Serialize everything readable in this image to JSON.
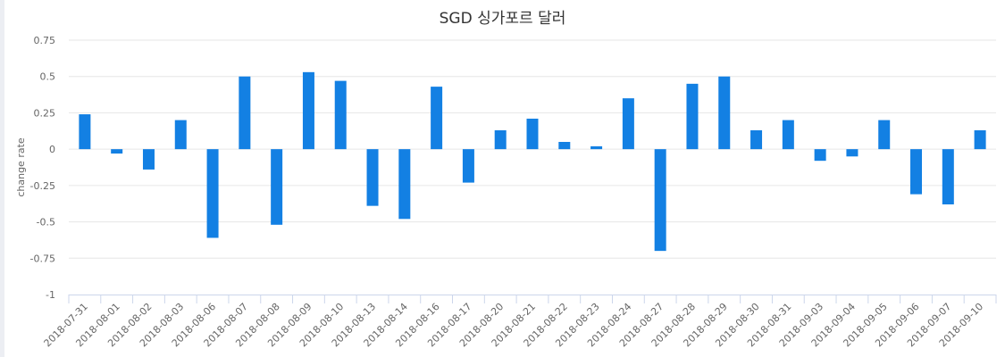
{
  "chart_data": {
    "type": "bar",
    "title": "SGD 싱가포르 달러",
    "xlabel": "",
    "ylabel": "change rate",
    "ylim": [
      -1,
      0.75
    ],
    "yticks": [
      0.75,
      0.5,
      0.25,
      0,
      -0.25,
      -0.5,
      -0.75,
      -1
    ],
    "ytick_labels": [
      "0.75",
      "0.5",
      "0.25",
      "0",
      "-0.25",
      "-0.5",
      "-0.75",
      "-1"
    ],
    "grid": true,
    "bar_color": "#1380e3",
    "categories": [
      "2018-07-31",
      "2018-08-01",
      "2018-08-02",
      "2018-08-03",
      "2018-08-06",
      "2018-08-07",
      "2018-08-08",
      "2018-08-09",
      "2018-08-10",
      "2018-08-13",
      "2018-08-14",
      "2018-08-16",
      "2018-08-17",
      "2018-08-20",
      "2018-08-21",
      "2018-08-22",
      "2018-08-23",
      "2018-08-24",
      "2018-08-27",
      "2018-08-28",
      "2018-08-29",
      "2018-08-30",
      "2018-08-31",
      "2018-09-03",
      "2018-09-04",
      "2018-09-05",
      "2018-09-06",
      "2018-09-07",
      "2018-09-10"
    ],
    "values": [
      0.24,
      -0.03,
      -0.14,
      0.2,
      -0.61,
      0.5,
      -0.52,
      0.53,
      0.47,
      -0.39,
      -0.48,
      0.43,
      -0.23,
      0.13,
      0.21,
      0.05,
      0.02,
      0.35,
      -0.7,
      0.45,
      0.5,
      0.13,
      0.2,
      -0.08,
      -0.05,
      0.2,
      -0.31,
      -0.38,
      0.13
    ]
  }
}
